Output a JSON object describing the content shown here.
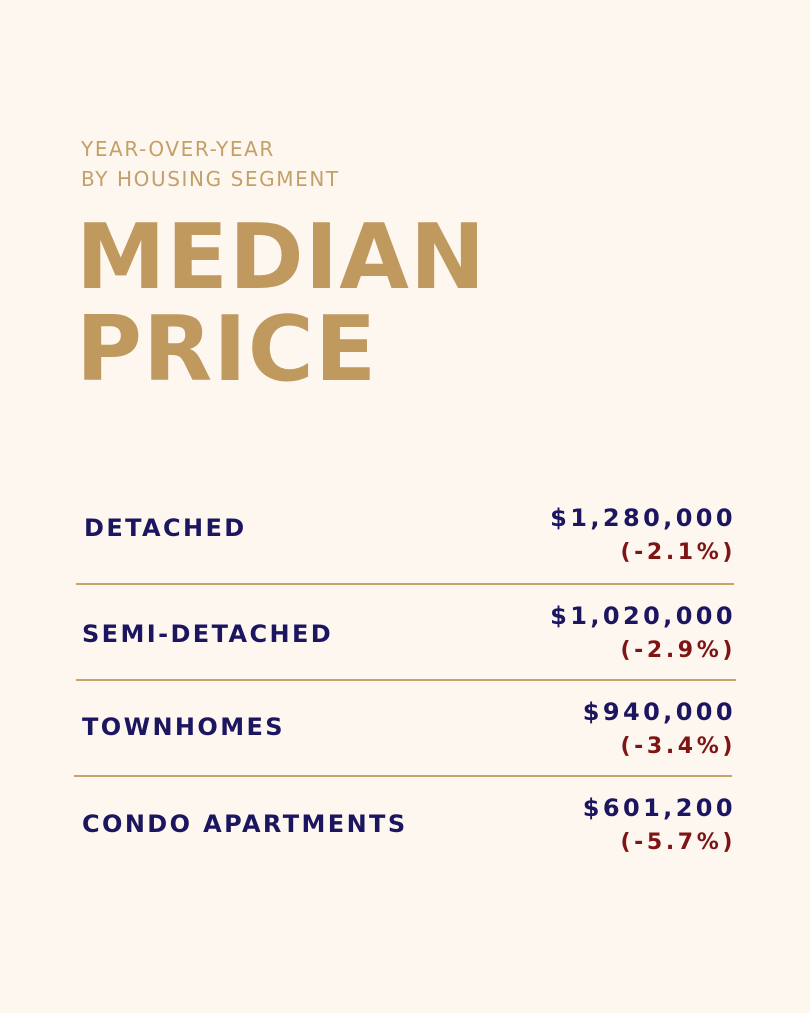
{
  "header": {
    "subtitle_line1": "YEAR-OVER-YEAR",
    "subtitle_line2": "BY HOUSING SEGMENT",
    "title_line1": "MEDIAN",
    "title_line2": "PRICE"
  },
  "segments": [
    {
      "label": "DETACHED",
      "price": "$1,280,000",
      "change": "(-2.1%)"
    },
    {
      "label": "SEMI-DETACHED",
      "price": "$1,020,000",
      "change": "(-2.9%)"
    },
    {
      "label": "TOWNHOMES",
      "price": "$940,000",
      "change": "(-3.4%)"
    },
    {
      "label": "CONDO APARTMENTS",
      "price": "$601,200",
      "change": "(-5.7%)"
    }
  ],
  "colors": {
    "background": "#fdf7ef",
    "gold": "#c0995e",
    "navy": "#1c1560",
    "dark_red": "#7e1414"
  }
}
